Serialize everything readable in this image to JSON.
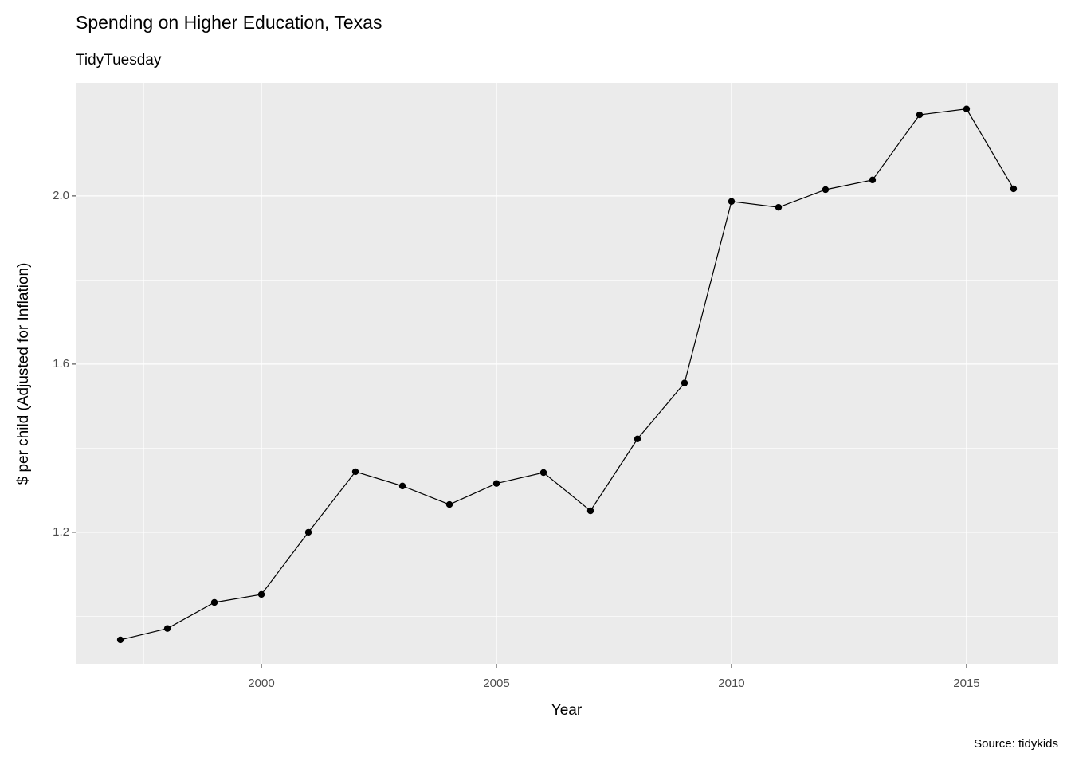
{
  "chart_data": {
    "type": "line",
    "title": "Spending on Higher Education, Texas",
    "subtitle": "TidyTuesday",
    "x_label": "Year",
    "y_label": "$ per child (Adjusted for Inflation)",
    "caption": "Source: tidykids",
    "x": [
      1997,
      1998,
      1999,
      2000,
      2001,
      2002,
      2003,
      2004,
      2005,
      2006,
      2007,
      2008,
      2009,
      2010,
      2011,
      2012,
      2013,
      2014,
      2015,
      2016
    ],
    "values": [
      0.944,
      0.971,
      1.033,
      1.052,
      1.2,
      1.344,
      1.31,
      1.266,
      1.316,
      1.342,
      1.251,
      1.422,
      1.555,
      1.987,
      1.973,
      2.015,
      2.038,
      2.193,
      2.207,
      2.017
    ],
    "color": "#000000",
    "xlim": [
      1996.05,
      2016.95
    ],
    "xticks": [
      2000,
      2005,
      2010,
      2015
    ],
    "ylim": [
      0.887,
      2.269
    ],
    "yticks": [
      {
        "value": 1.2,
        "label": "1.2"
      },
      {
        "value": 1.6,
        "label": "1.6"
      },
      {
        "value": 2,
        "label": "2.0"
      }
    ],
    "grid": true
  }
}
